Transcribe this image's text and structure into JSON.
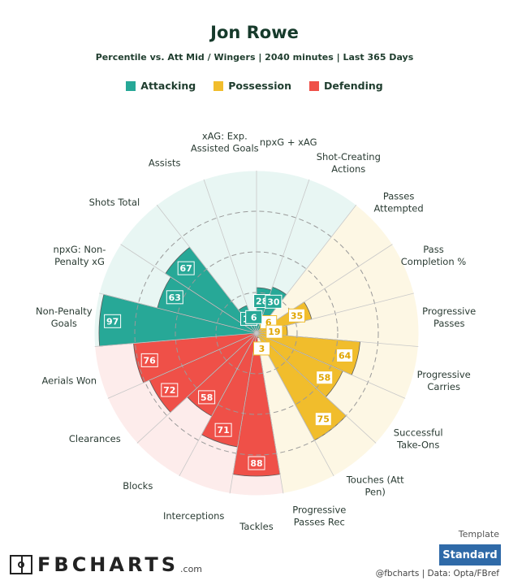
{
  "header": {
    "title": "Jon Rowe",
    "subtitle": "Percentile vs. Att Mid / Wingers | 2040 minutes | Last 365 Days"
  },
  "colors": {
    "Attacking": "#27a897",
    "Possession": "#f1bd2c",
    "Defending": "#ef5048"
  },
  "chart_data": {
    "type": "radar",
    "legend_placement": "top",
    "r_range": [
      0,
      100
    ],
    "legend": [
      "Attacking",
      "Possession",
      "Defending"
    ],
    "categories": [
      {
        "label": [
          "npxG + xAG"
        ],
        "value": 28,
        "group": "Attacking"
      },
      {
        "label": [
          "Shot-Creating",
          "Actions"
        ],
        "value": 30,
        "group": "Attacking"
      },
      {
        "label": [
          "Passes",
          "Attempted"
        ],
        "value": 6,
        "group": "Possession"
      },
      {
        "label": [
          "Pass",
          "Completion %"
        ],
        "value": 35,
        "group": "Possession"
      },
      {
        "label": [
          "Progressive",
          "Passes"
        ],
        "value": 19,
        "group": "Possession"
      },
      {
        "label": [
          "Progressive",
          "Carries"
        ],
        "value": 64,
        "group": "Possession"
      },
      {
        "label": [
          "Successful",
          "Take-Ons"
        ],
        "value": 58,
        "group": "Possession"
      },
      {
        "label": [
          "Touches (Att",
          "Pen)"
        ],
        "value": 75,
        "group": "Possession"
      },
      {
        "label": [
          "Progressive",
          "Passes Rec"
        ],
        "value": 3,
        "group": "Possession"
      },
      {
        "label": [
          "Tackles"
        ],
        "value": 88,
        "group": "Defending"
      },
      {
        "label": [
          "Interceptions"
        ],
        "value": 71,
        "group": "Defending"
      },
      {
        "label": [
          "Blocks"
        ],
        "value": 58,
        "group": "Defending"
      },
      {
        "label": [
          "Clearances"
        ],
        "value": 72,
        "group": "Defending"
      },
      {
        "label": [
          "Aerials Won"
        ],
        "value": 76,
        "group": "Defending"
      },
      {
        "label": [
          "Non-Penalty",
          "Goals"
        ],
        "value": 97,
        "group": "Attacking"
      },
      {
        "label": [
          "npxG: Non-",
          "Penalty xG"
        ],
        "value": 63,
        "group": "Attacking"
      },
      {
        "label": [
          "Shots Total"
        ],
        "value": 67,
        "group": "Attacking"
      },
      {
        "label": [
          "Assists"
        ],
        "value": 18,
        "group": "Attacking"
      },
      {
        "label": [
          "xAG: Exp.",
          "Assisted Goals"
        ],
        "value": 6,
        "group": "Attacking"
      }
    ]
  },
  "footer": {
    "logo_text": "FBCHARTS",
    "logo_suffix": ".com",
    "template_label": "Template",
    "template_button": "Standard",
    "credits": "@fbcharts | Data: Opta/FBref"
  }
}
